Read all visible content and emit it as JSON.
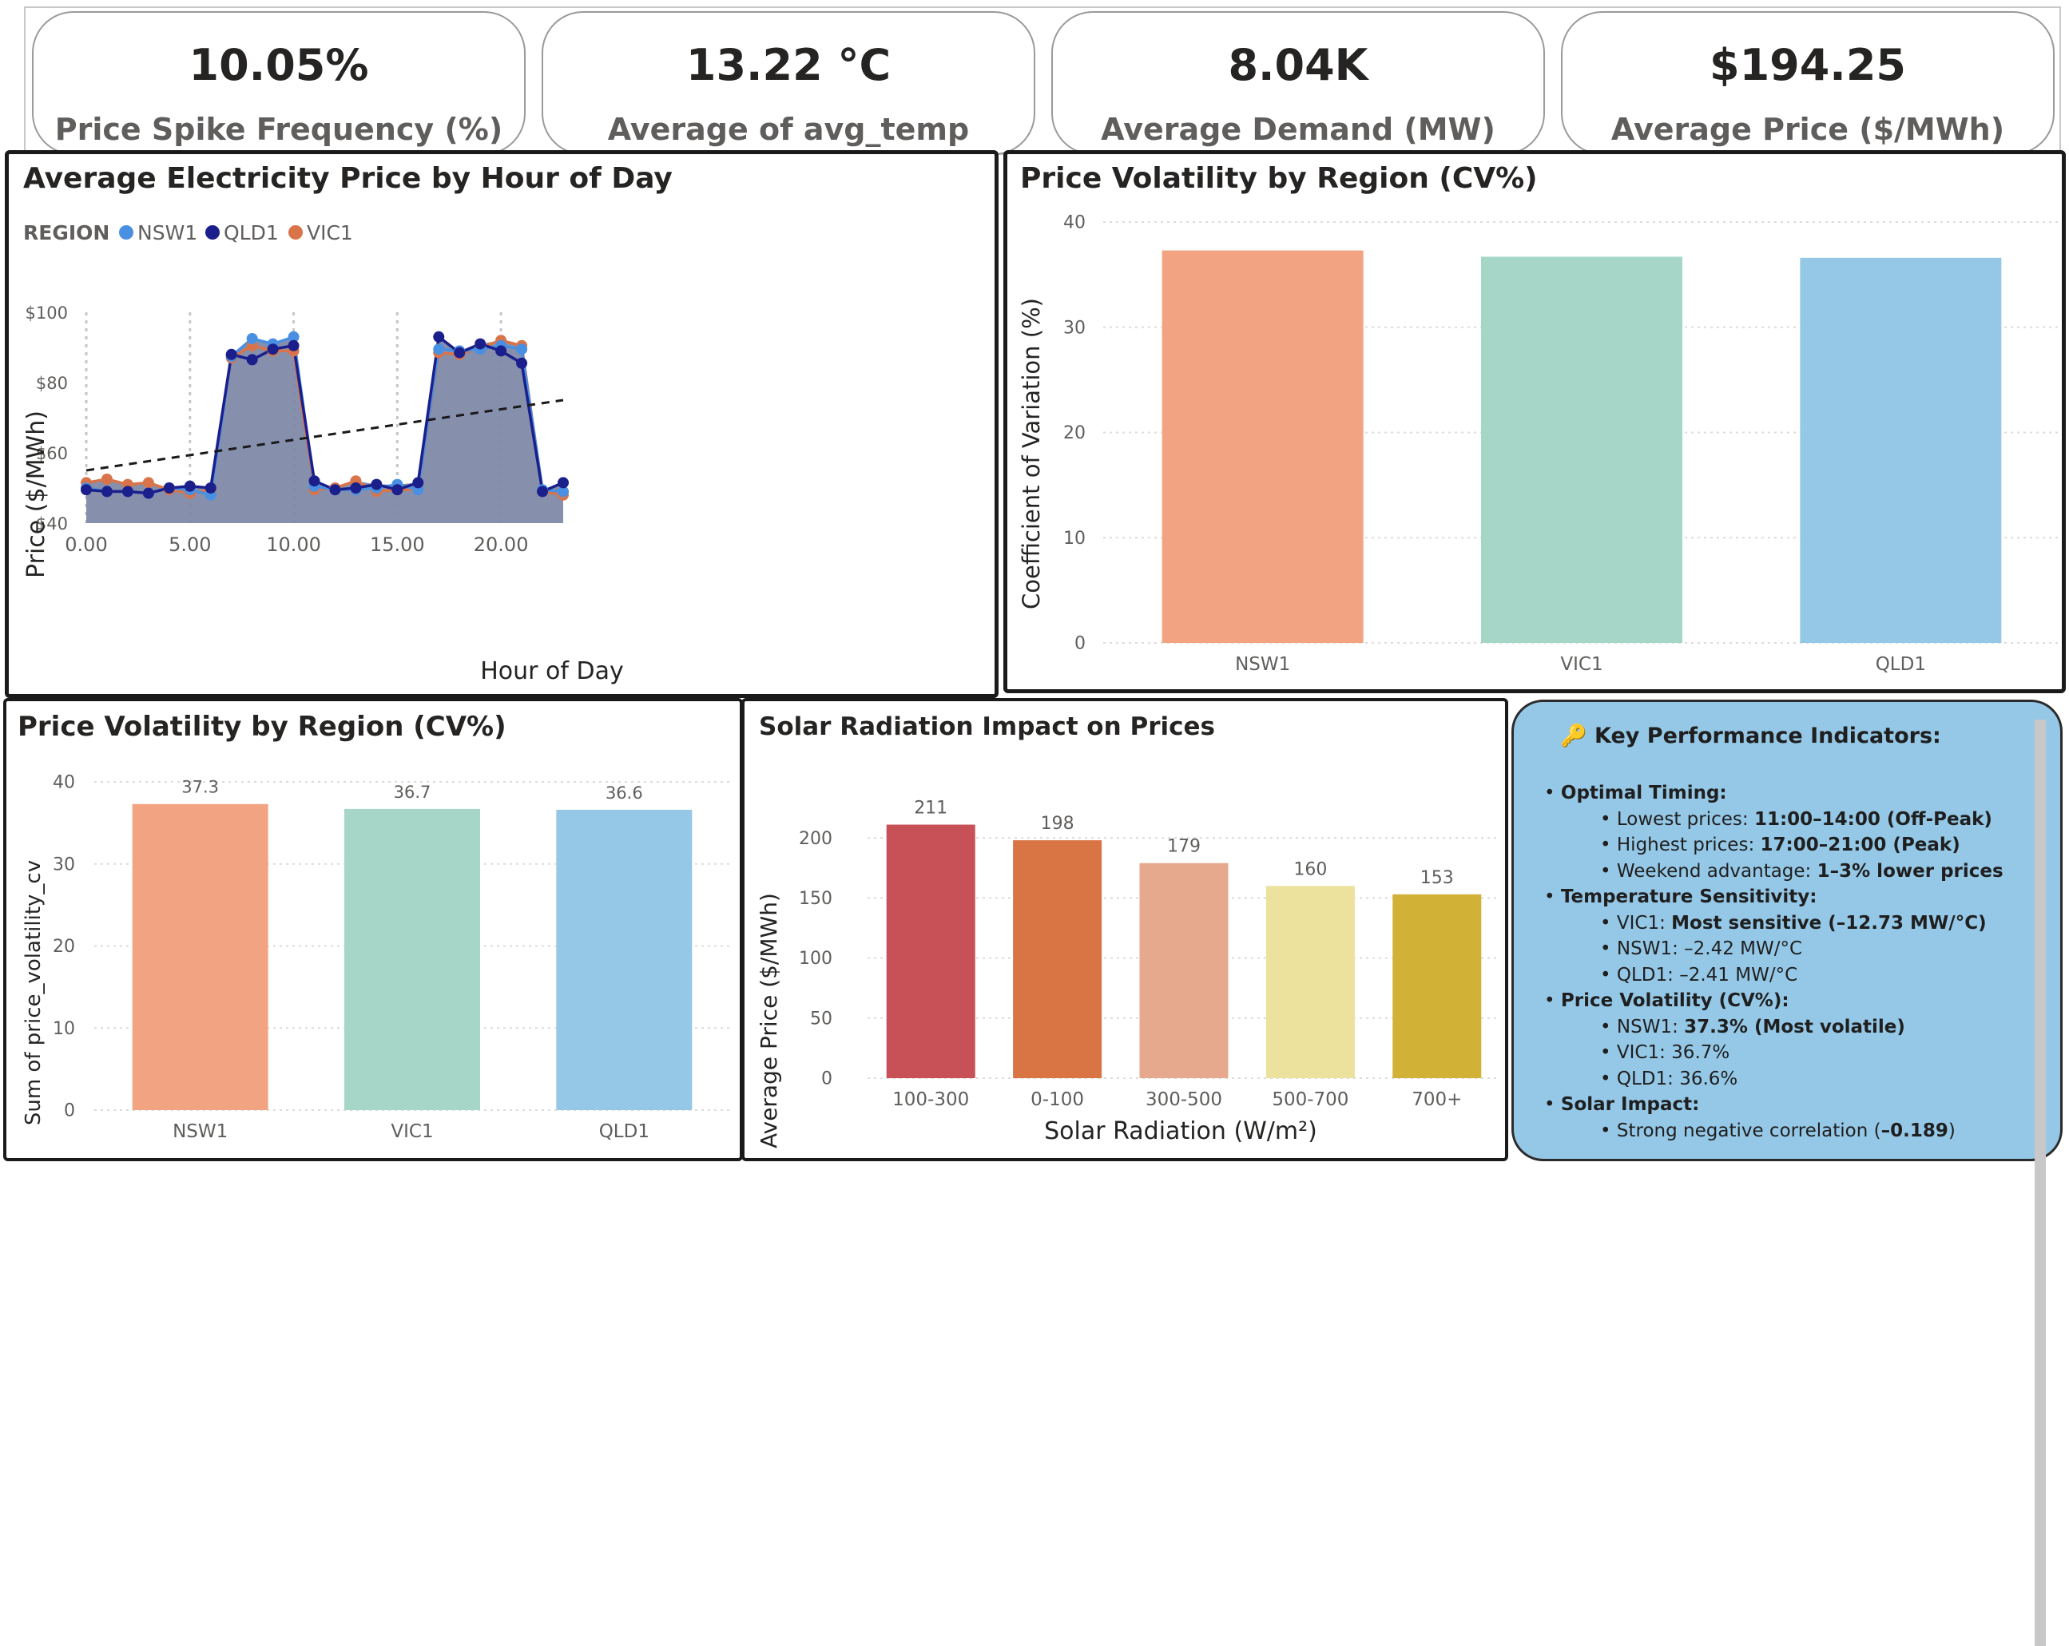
{
  "kpis": [
    {
      "value": "10.05%",
      "label": "Price Spike Frequency (%)"
    },
    {
      "value": "13.22 °C",
      "label": "Average of avg_temp"
    },
    {
      "value": "8.04K",
      "label": "Average Demand (MW)"
    },
    {
      "value": "$194.25",
      "label": "Average Price ($/MWh)"
    }
  ],
  "hourly": {
    "title": "Average Electricity Price by Hour of Day",
    "legend_title": "REGION",
    "xlabel": "Hour of Day",
    "ylabel": "Price ($/MWh)",
    "yticks": [
      "$40",
      "$60",
      "$80",
      "$100"
    ],
    "xticks": [
      "0.00",
      "5.00",
      "10.00",
      "15.00",
      "20.00"
    ]
  },
  "volatility_top": {
    "title": "Price Volatility by Region (CV%)",
    "ylabel": "Coefficient of Variation (%)",
    "yticks": [
      "0",
      "10",
      "20",
      "30",
      "40"
    ]
  },
  "volatility_bottom": {
    "title": "Price Volatility by Region (CV%)",
    "ylabel": "Sum of price_volatility_cv",
    "yticks": [
      "0",
      "10",
      "20",
      "30",
      "40"
    ]
  },
  "solar": {
    "title": "Solar Radiation Impact on Prices",
    "ylabel": "Average Price ($/MWh)",
    "xlabel": "Solar Radiation (W/m²)",
    "yticks": [
      "0",
      "50",
      "100",
      "150",
      "200"
    ]
  },
  "key_indicators": {
    "heading": "🔑 Key Performance Indicators:",
    "sections": [
      {
        "title": "Optimal Timing:",
        "items": [
          {
            "label": "Lowest prices: ",
            "value": "11:00–14:00 (Off-Peak)",
            "bold": true
          },
          {
            "label": "Highest prices: ",
            "value": "17:00–21:00 (Peak)",
            "bold": true
          },
          {
            "label": "Weekend advantage: ",
            "value": "1–3% lower prices",
            "bold": true
          }
        ]
      },
      {
        "title": "Temperature Sensitivity:",
        "items": [
          {
            "label": "VIC1: ",
            "value": "Most sensitive (–12.73 MW/°C)",
            "bold": true
          },
          {
            "label": "NSW1: ",
            "value": "–2.42 MW/°C",
            "bold": false
          },
          {
            "label": "QLD1: ",
            "value": "–2.41 MW/°C",
            "bold": false
          }
        ]
      },
      {
        "title": "Price Volatility (CV%):",
        "items": [
          {
            "label": "NSW1: ",
            "value": "37.3% (Most volatile)",
            "bold": true
          },
          {
            "label": "VIC1: ",
            "value": "36.7%",
            "bold": false
          },
          {
            "label": "QLD1: ",
            "value": "36.6%",
            "bold": false
          }
        ]
      },
      {
        "title": "Solar Impact:",
        "items": [
          {
            "label": "Strong negative correlation (",
            "value": "–0.189",
            "bold": true,
            "suffix": ")"
          }
        ]
      }
    ]
  },
  "colors": {
    "nsw1_line": "#4a90e2",
    "qld1_line": "#1a1f8c",
    "vic1_line": "#d9744a",
    "area_fill": "#7f89a8",
    "nsw1_bar": "#f2a482",
    "vic1_bar": "#a5d6c8",
    "qld1_bar": "#95c8e7",
    "solar_bars": [
      "#c85057",
      "#d97445",
      "#e6a98e",
      "#ece29d",
      "#d1b236"
    ],
    "kpi_box": "#95c8e7"
  },
  "chart_data": [
    {
      "type": "line",
      "title": "Average Electricity Price by Hour of Day",
      "xlabel": "Hour of Day",
      "ylabel": "Price ($/MWh)",
      "ylim": [
        40,
        100
      ],
      "xlim": [
        0,
        23
      ],
      "legend": "top-left",
      "legend_title": "REGION",
      "x": [
        0,
        1,
        2,
        3,
        4,
        5,
        6,
        7,
        8,
        9,
        10,
        11,
        12,
        13,
        14,
        15,
        16,
        17,
        18,
        19,
        20,
        21,
        22,
        23
      ],
      "series": [
        {
          "name": "NSW1",
          "values": [
            50.0,
            49.0,
            49.0,
            48.5,
            50.0,
            49.5,
            48.0,
            87.5,
            92.5,
            91.0,
            93.0,
            50.5,
            49.5,
            49.5,
            50.0,
            51.0,
            49.5,
            89.5,
            89.0,
            89.5,
            90.5,
            89.5,
            49.5,
            49.0
          ]
        },
        {
          "name": "QLD1",
          "values": [
            49.5,
            49.0,
            49.0,
            48.5,
            50.0,
            50.5,
            50.0,
            88.0,
            86.5,
            89.5,
            90.5,
            52.0,
            49.5,
            50.0,
            51.0,
            49.5,
            51.5,
            93.0,
            88.5,
            91.0,
            89.0,
            85.5,
            49.0,
            51.5
          ]
        },
        {
          "name": "VIC1",
          "values": [
            51.5,
            52.5,
            51.0,
            51.5,
            49.5,
            48.5,
            49.5,
            87.0,
            90.5,
            89.0,
            89.0,
            49.5,
            50.0,
            52.0,
            49.0,
            49.5,
            49.5,
            88.5,
            88.0,
            90.0,
            92.0,
            90.5,
            49.0,
            48.0
          ]
        }
      ],
      "trendline": {
        "start": [
          0,
          55
        ],
        "end": [
          23,
          75
        ]
      }
    },
    {
      "type": "bar",
      "title": "Price Volatility by Region (CV%)",
      "ylabel": "Coefficient of Variation (%)",
      "categories": [
        "NSW1",
        "VIC1",
        "QLD1"
      ],
      "values": [
        37.3,
        36.7,
        36.6
      ],
      "ylim": [
        0,
        40
      ]
    },
    {
      "type": "bar",
      "title": "Price Volatility by Region (CV%)",
      "ylabel": "Sum of price_volatility_cv",
      "categories": [
        "NSW1",
        "VIC1",
        "QLD1"
      ],
      "values": [
        37.3,
        36.7,
        36.6
      ],
      "data_labels": [
        "37.3",
        "36.7",
        "36.6"
      ],
      "ylim": [
        0,
        40
      ]
    },
    {
      "type": "bar",
      "title": "Solar Radiation Impact on Prices",
      "xlabel": "Solar Radiation (W/m²)",
      "ylabel": "Average Price ($/MWh)",
      "categories": [
        "100-300",
        "0-100",
        "300-500",
        "500-700",
        "700+"
      ],
      "values": [
        211,
        198,
        179,
        160,
        153
      ],
      "data_labels": [
        "211",
        "198",
        "179",
        "160",
        "153"
      ],
      "ylim": [
        0,
        220
      ]
    }
  ]
}
